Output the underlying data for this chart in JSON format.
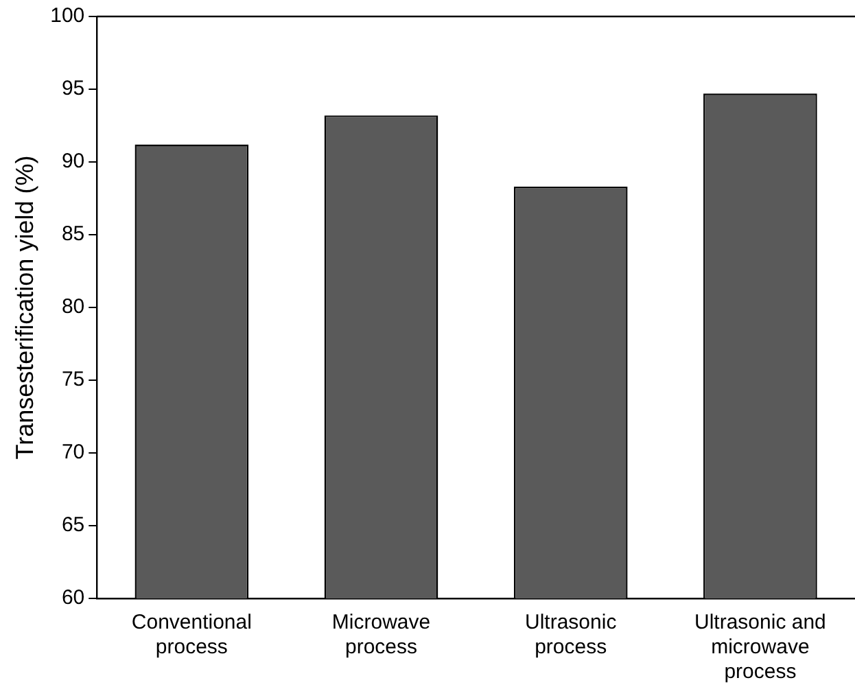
{
  "chart_data": {
    "type": "bar",
    "ylabel": "Transesterification yield (%)",
    "categories": [
      "Conventional process",
      "Microwave process",
      "Ultrasonic process",
      "Ultrasonic and microwave process"
    ],
    "values": [
      91.2,
      93.2,
      88.3,
      94.7
    ],
    "color": "#5a5a5a",
    "ylim": [
      60,
      100
    ],
    "yticks": [
      60,
      65,
      70,
      75,
      80,
      85,
      90,
      95,
      100
    ],
    "grid": false,
    "legend": false
  }
}
